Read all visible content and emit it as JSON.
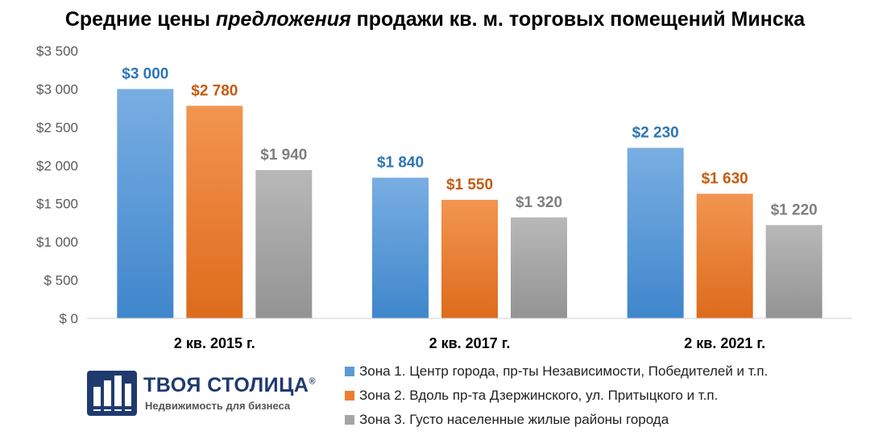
{
  "title": {
    "part1": "Средние цены ",
    "part2": "предложения",
    "part3": " продажи кв. м. торговых помещений Минска"
  },
  "chart_data": {
    "type": "bar",
    "categories": [
      "2 кв. 2015 г.",
      "2 кв. 2017 г.",
      "2 кв. 2021 г."
    ],
    "series": [
      {
        "name": "Зона 1. Центр города, пр-ты Независимости, Победителей и т.п.",
        "values": [
          3000,
          1840,
          2230
        ],
        "labels": [
          "$3 000",
          "$1 840",
          "$2 230"
        ],
        "color": "#5b9bd5",
        "label_color": "#2e75b6"
      },
      {
        "name": "Зона 2. Вдоль пр-та Дзержинского, ул. Притыцкого и т.п.",
        "values": [
          2780,
          1550,
          1630
        ],
        "labels": [
          "$2 780",
          "$1 550",
          "$1 630"
        ],
        "color": "#ed7d31",
        "label_color": "#c55a11"
      },
      {
        "name": "Зона 3. Густо населенные жилые районы города",
        "values": [
          1940,
          1320,
          1220
        ],
        "labels": [
          "$1 940",
          "$1 320",
          "$1 220"
        ],
        "color": "#a5a5a5",
        "label_color": "#7f7f7f"
      }
    ],
    "ylim": [
      0,
      3500
    ],
    "yticks": [
      0,
      500,
      1000,
      1500,
      2000,
      2500,
      3000,
      3500
    ],
    "ytick_labels": [
      "$ 0",
      "$ 500",
      "$1 000",
      "$1 500",
      "$2 000",
      "$2 500",
      "$3 000",
      "$3 500"
    ],
    "grid": false,
    "legend_position": "bottom-right"
  },
  "logo": {
    "name": "ТВОЯ СТОЛИЦА",
    "reg": "®",
    "tagline": "Недвижимость для бизнеса"
  }
}
